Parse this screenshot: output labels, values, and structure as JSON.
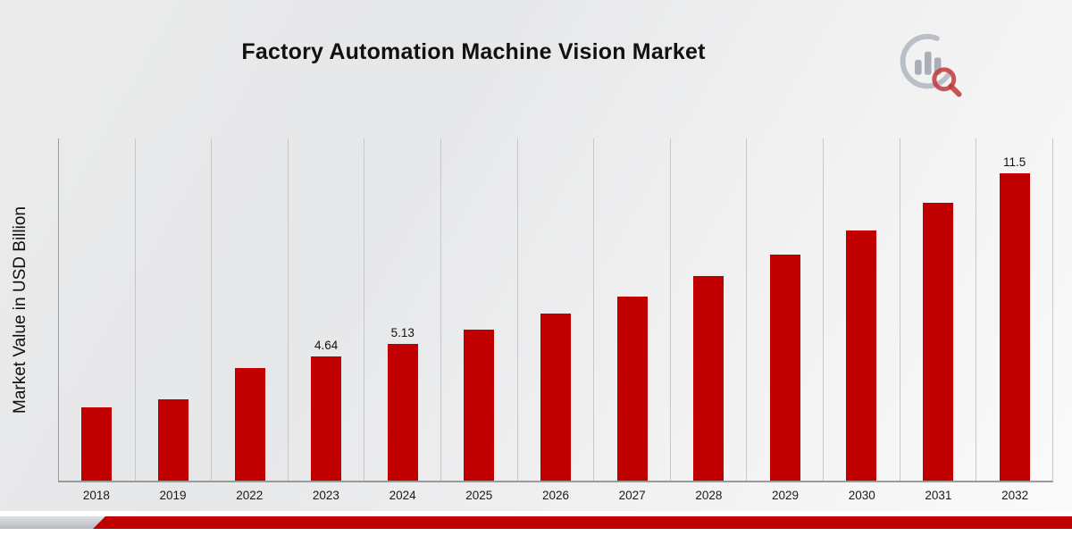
{
  "title": "Factory Automation Machine Vision Market",
  "logo": {
    "name": "market-research-logo"
  },
  "chart_data": {
    "type": "bar",
    "title": "Factory Automation Machine Vision Market",
    "xlabel": "",
    "ylabel": "Market Value in USD Billion",
    "categories": [
      "2018",
      "2019",
      "2022",
      "2023",
      "2024",
      "2025",
      "2026",
      "2027",
      "2028",
      "2029",
      "2030",
      "2031",
      "2032"
    ],
    "values": [
      2.75,
      3.05,
      4.2,
      4.64,
      5.13,
      5.65,
      6.25,
      6.9,
      7.65,
      8.45,
      9.35,
      10.4,
      11.5
    ],
    "data_labels": [
      "",
      "",
      "",
      "4.64",
      "5.13",
      "",
      "",
      "",
      "",
      "",
      "",
      "",
      "11.5"
    ],
    "ylim": [
      0,
      12.8
    ],
    "grid": "vertical",
    "legend": "none"
  },
  "colors": {
    "bar": "#c00000",
    "grid": "#c8c8c8",
    "axis": "#9a9a9a",
    "accent_band": "#c00000",
    "band_gray": "#c3c7cd",
    "logo_gray": "#a9aeb8",
    "logo_red": "#c03a3a"
  }
}
